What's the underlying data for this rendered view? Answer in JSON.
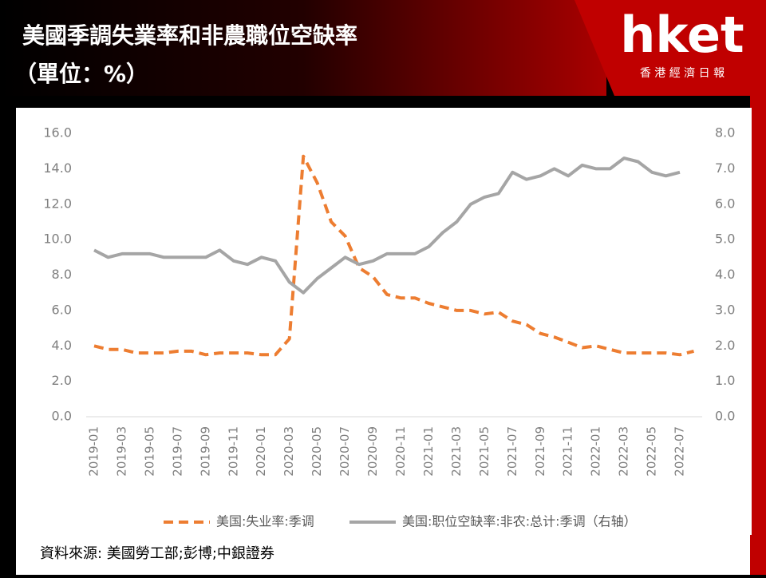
{
  "header": {
    "title": "美國季調失業率和非農職位空缺率",
    "subtitle": "（單位：%）",
    "logo": "hket",
    "logo_subtitle": "香 港 經 濟 日 報"
  },
  "chart_data": {
    "type": "line",
    "categories": [
      "2019-01",
      null,
      "2019-03",
      null,
      "2019-05",
      null,
      "2019-07",
      null,
      "2019-09",
      null,
      "2019-11",
      null,
      "2020-01",
      null,
      "2020-03",
      null,
      "2020-05",
      null,
      "2020-07",
      null,
      "2020-09",
      null,
      "2020-11",
      null,
      "2021-01",
      null,
      "2021-03",
      null,
      "2021-05",
      null,
      "2021-07",
      null,
      "2021-09",
      null,
      "2021-11",
      null,
      "2022-01",
      null,
      "2022-03",
      null,
      "2022-05",
      null,
      "2022-07",
      null
    ],
    "series": [
      {
        "name": "美国:失业率:季调",
        "color": "#ed7d31",
        "dashed": true,
        "axis": "y",
        "values": [
          4.0,
          3.8,
          3.8,
          3.6,
          3.6,
          3.6,
          3.7,
          3.7,
          3.5,
          3.6,
          3.6,
          3.6,
          3.5,
          3.5,
          4.4,
          14.7,
          13.2,
          11.0,
          10.2,
          8.4,
          7.9,
          6.9,
          6.7,
          6.7,
          6.4,
          6.2,
          6.0,
          6.0,
          5.8,
          5.9,
          5.4,
          5.2,
          4.7,
          4.5,
          4.2,
          3.9,
          4.0,
          3.8,
          3.6,
          3.6,
          3.6,
          3.6,
          3.5,
          3.7
        ]
      },
      {
        "name": "美国:职位空缺率:非农:总计:季调（右轴）",
        "color": "#a5a5a5",
        "dashed": false,
        "axis": "y2",
        "values": [
          4.7,
          4.5,
          4.6,
          4.6,
          4.6,
          4.5,
          4.5,
          4.5,
          4.5,
          4.7,
          4.4,
          4.3,
          4.5,
          4.4,
          3.8,
          3.5,
          3.9,
          4.2,
          4.5,
          4.3,
          4.4,
          4.6,
          4.6,
          4.6,
          4.8,
          5.2,
          5.5,
          6.0,
          6.2,
          6.3,
          6.9,
          6.7,
          6.8,
          7.0,
          6.8,
          7.1,
          7.0,
          7.0,
          7.3,
          7.2,
          6.9,
          6.8,
          6.9,
          null
        ]
      }
    ],
    "ylim": [
      0,
      16
    ],
    "yticks": [
      {
        "value": 0,
        "label": "0.0"
      },
      {
        "value": 2,
        "label": "2.0"
      },
      {
        "value": 4,
        "label": "4.0"
      },
      {
        "value": 6,
        "label": "6.0"
      },
      {
        "value": 8,
        "label": "8.0"
      },
      {
        "value": 10,
        "label": "10.0"
      },
      {
        "value": 12,
        "label": "12.0"
      },
      {
        "value": 14,
        "label": "14.0"
      },
      {
        "value": 16,
        "label": "16.0"
      }
    ],
    "y2lim": [
      0,
      8
    ],
    "y2ticks": [
      {
        "value": 0,
        "label": "0.0"
      },
      {
        "value": 1,
        "label": "1.0"
      },
      {
        "value": 2,
        "label": "2.0"
      },
      {
        "value": 3,
        "label": "3.0"
      },
      {
        "value": 4,
        "label": "4.0"
      },
      {
        "value": 5,
        "label": "5.0"
      },
      {
        "value": 6,
        "label": "6.0"
      },
      {
        "value": 7,
        "label": "7.0"
      },
      {
        "value": 8,
        "label": "8.0"
      }
    ],
    "grid": false,
    "legend": "bottom"
  },
  "footer": {
    "source": "資料來源: 美國勞工部;彭博;中銀證券"
  }
}
